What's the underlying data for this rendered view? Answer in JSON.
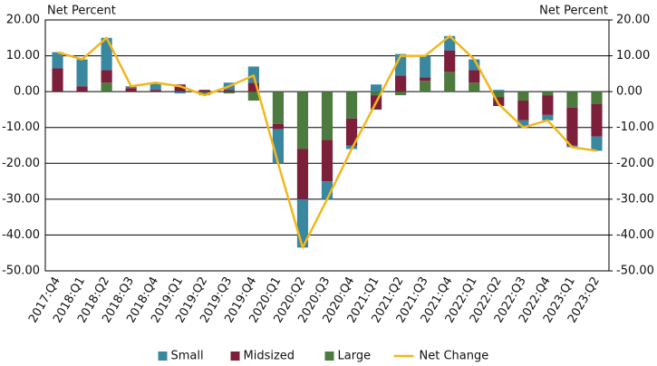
{
  "chart_data": {
    "type": "stacked_bar_line",
    "y_label": "Net Percent",
    "y2_label": "Net Percent",
    "categories": [
      "2017:Q4",
      "2018:Q1",
      "2018:Q2",
      "2018:Q3",
      "2018:Q4",
      "2019:Q1",
      "2019:Q2",
      "2019:Q3",
      "2019:Q4",
      "2020:Q1",
      "2020:Q2",
      "2020:Q3",
      "2020:Q4",
      "2021:Q1",
      "2021:Q2",
      "2021:Q3",
      "2021:Q4",
      "2022:Q1",
      "2022:Q2",
      "2022:Q3",
      "2022:Q4",
      "2023:Q1",
      "2023:Q2"
    ],
    "series": [
      {
        "name": "Small",
        "type": "bar",
        "color": "#3a87a0",
        "values": [
          4.5,
          7.5,
          9,
          0.5,
          2,
          -0.5,
          0,
          2,
          4.5,
          -9.5,
          -13.5,
          -5,
          -1,
          2,
          6,
          6,
          4,
          3,
          0.5,
          -2,
          -1.5,
          -0.5,
          -4
        ]
      },
      {
        "name": "Midsized",
        "type": "bar",
        "color": "#7b1f3a",
        "values": [
          6.5,
          1.5,
          3.5,
          1,
          0.5,
          2,
          0.5,
          0.5,
          2.5,
          -1.5,
          -14,
          -11.5,
          -7.5,
          -4,
          4.5,
          1,
          6,
          3.5,
          -2.5,
          -5.5,
          -5.5,
          -10.5,
          -9
        ]
      },
      {
        "name": "Large",
        "type": "bar",
        "color": "#4d7a3e",
        "values": [
          0,
          0,
          2.5,
          0,
          0,
          0,
          -1,
          -0.5,
          -2.5,
          -9,
          -16,
          -13.5,
          -7.5,
          -1,
          -1,
          3,
          5.5,
          2.5,
          -1.5,
          -2.5,
          -1,
          -4.5,
          -3.5
        ]
      },
      {
        "name": "Net Change",
        "type": "line",
        "color": "#f2b71c",
        "values": [
          11,
          9,
          15,
          1.5,
          2.5,
          1.5,
          -1,
          1.5,
          4.5,
          -20,
          -43.5,
          -30,
          -16,
          -3,
          10,
          10,
          15.5,
          9,
          -3.5,
          -10,
          -8,
          -15.5,
          -16.5
        ]
      }
    ],
    "ylim": [
      -50,
      20
    ],
    "yticks": [
      {
        "value": 20,
        "label": "20.00"
      },
      {
        "value": 10,
        "label": "10.00"
      },
      {
        "value": 0,
        "label": "0.00"
      },
      {
        "value": -10,
        "label": "-10.00"
      },
      {
        "value": -20,
        "label": "-20.00"
      },
      {
        "value": -30,
        "label": "-30.00"
      },
      {
        "value": -40,
        "label": "-40.00"
      },
      {
        "value": -50,
        "label": "-50.00"
      }
    ],
    "y2lim": [
      -50,
      20
    ],
    "y2ticks": [
      {
        "value": 20,
        "label": "20.00"
      },
      {
        "value": 10,
        "label": "10.00"
      },
      {
        "value": 0,
        "label": "0.00"
      },
      {
        "value": -10,
        "label": "-10.00"
      },
      {
        "value": -20,
        "label": "-20.00"
      },
      {
        "value": -30,
        "label": "-30.00"
      },
      {
        "value": -40,
        "label": "-40.00"
      },
      {
        "value": -50,
        "label": "-50.00"
      }
    ],
    "grid": true
  }
}
